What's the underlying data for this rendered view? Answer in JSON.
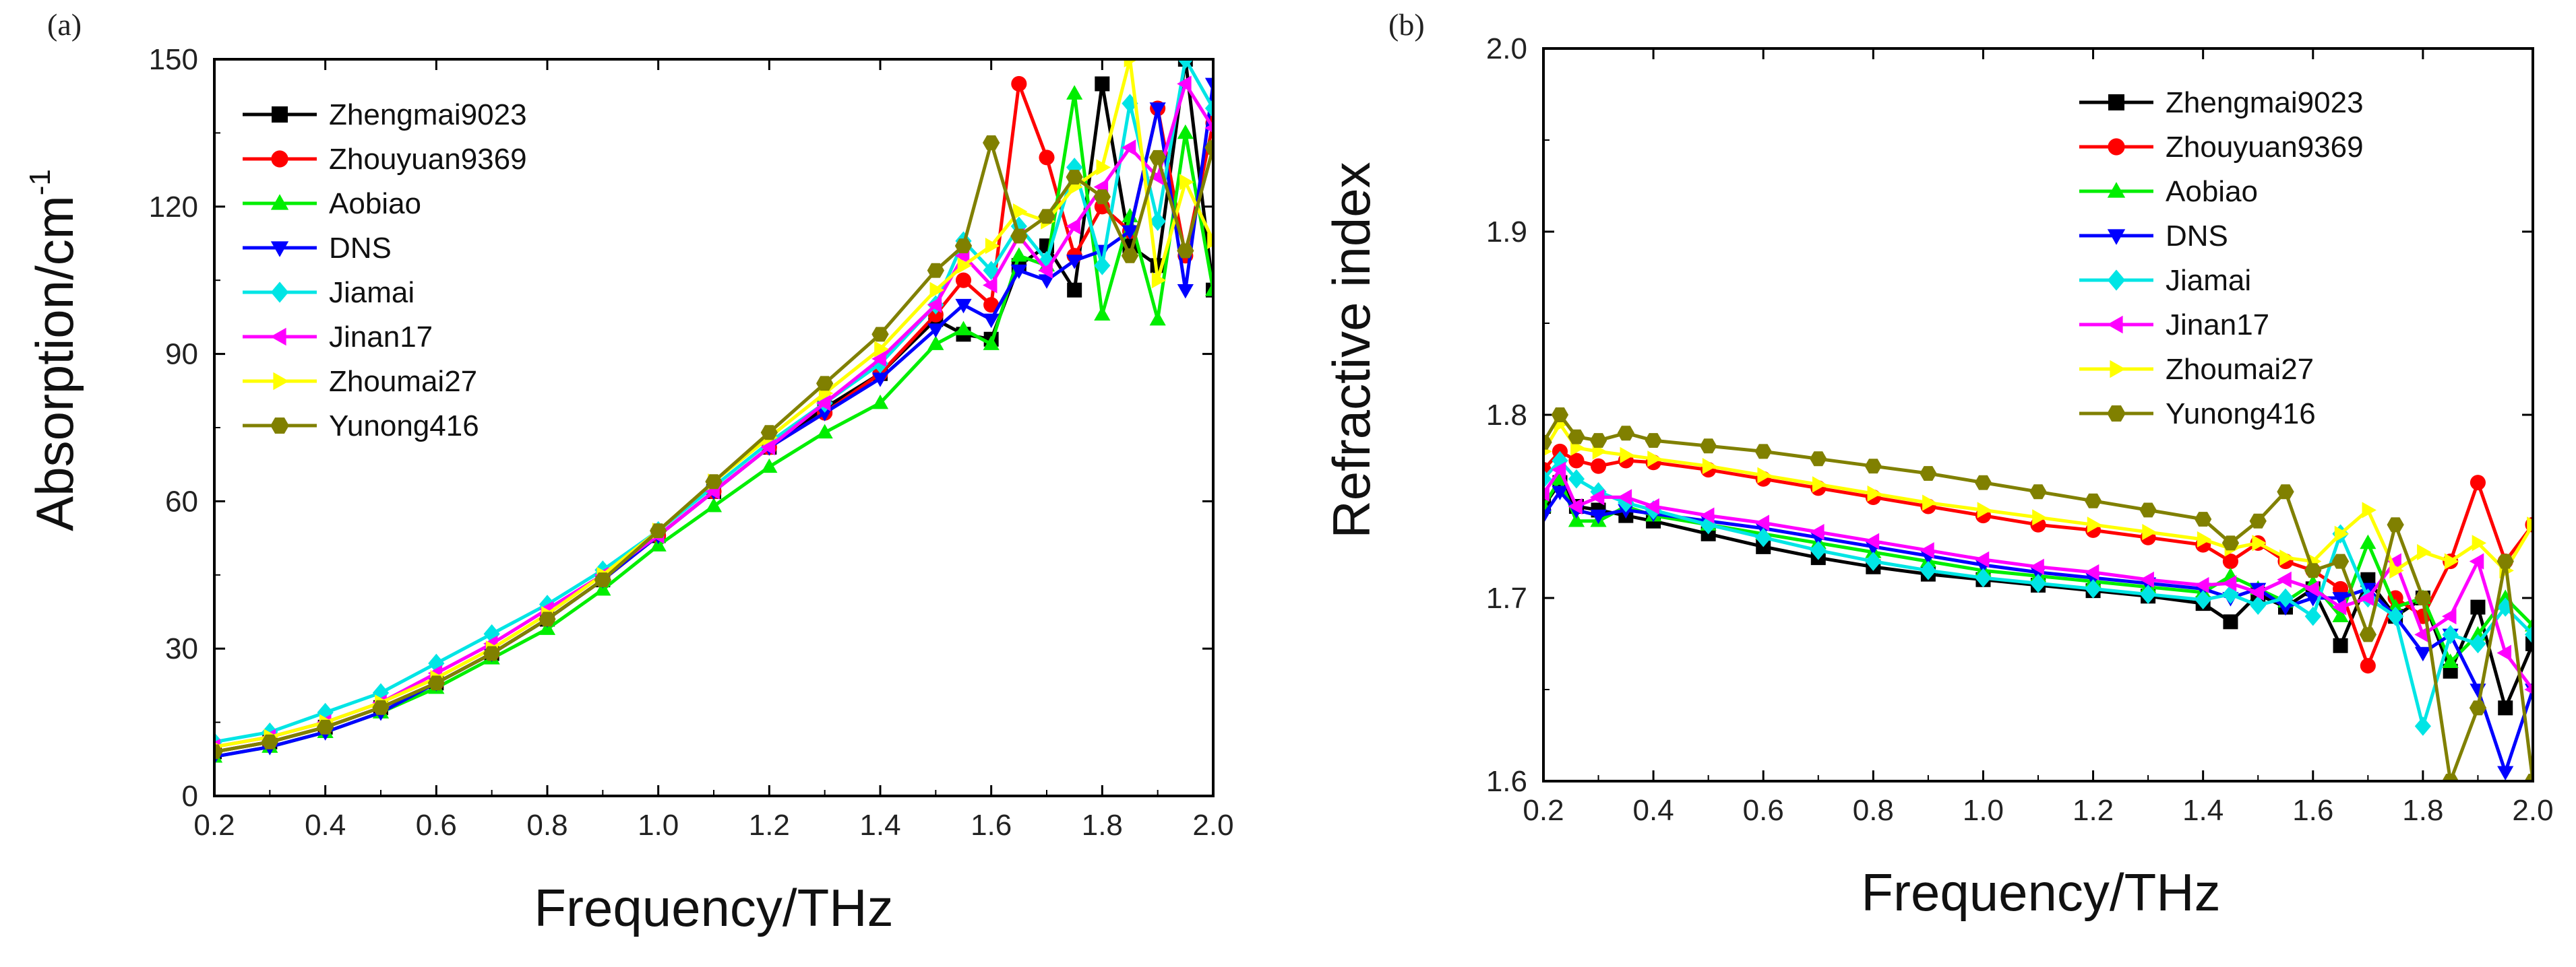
{
  "series_styles": [
    {
      "name": "Zhengmai9023",
      "color": "#000000",
      "marker": "square"
    },
    {
      "name": "Zhouyuan9369",
      "color": "#ff0000",
      "marker": "circle"
    },
    {
      "name": "Aobiao",
      "color": "#00ee00",
      "marker": "triangle-up"
    },
    {
      "name": "DNS",
      "color": "#0000ff",
      "marker": "triangle-down"
    },
    {
      "name": "Jiamai",
      "color": "#00e5e5",
      "marker": "diamond"
    },
    {
      "name": "Jinan17",
      "color": "#ff00ff",
      "marker": "triangle-left"
    },
    {
      "name": "Zhoumai27",
      "color": "#ffff00",
      "marker": "triangle-right"
    },
    {
      "name": "Yunong416",
      "color": "#808000",
      "marker": "hexagon"
    }
  ],
  "chart_data": [
    {
      "type": "line",
      "panel_label": "(a)",
      "xlabel": "Frequency/THz",
      "ylabel": "Absorption/cm",
      "ylabel_sup": "-1",
      "xlim": [
        0.2,
        2.0
      ],
      "ylim": [
        0,
        150
      ],
      "xticks": [
        "0.2",
        "0.4",
        "0.6",
        "0.8",
        "1.0",
        "1.2",
        "1.4",
        "1.6",
        "1.8",
        "2.0"
      ],
      "yticks": [
        "0",
        "30",
        "60",
        "90",
        "120",
        "150"
      ],
      "legend_loc": "top-left",
      "x": [
        0.2,
        0.3,
        0.4,
        0.5,
        0.6,
        0.7,
        0.8,
        0.9,
        1.0,
        1.1,
        1.2,
        1.3,
        1.4,
        1.5,
        1.55,
        1.6,
        1.65,
        1.7,
        1.75,
        1.8,
        1.85,
        1.9,
        1.95,
        2.0
      ],
      "series": [
        {
          "name": "Zhengmai9023",
          "values": [
            9,
            11,
            14,
            18,
            23,
            29,
            36,
            44,
            53,
            62,
            71,
            79,
            86,
            97,
            94,
            93,
            108,
            112,
            103,
            145,
            112,
            108,
            150,
            103
          ]
        },
        {
          "name": "Zhouyuan9369",
          "values": [
            9,
            11,
            14,
            18,
            23,
            29,
            36,
            44,
            53,
            62,
            71,
            78,
            86,
            98,
            105,
            100,
            145,
            130,
            110,
            120,
            115,
            140,
            110,
            137
          ]
        },
        {
          "name": "Aobiao",
          "values": [
            8,
            10,
            13,
            17,
            22,
            28,
            34,
            42,
            51,
            59,
            67,
            74,
            80,
            92,
            95,
            92,
            110,
            108,
            143,
            98,
            118,
            97,
            135,
            103
          ]
        },
        {
          "name": "DNS",
          "values": [
            8,
            10,
            13,
            17,
            23,
            29,
            36,
            44,
            53,
            62,
            71,
            78,
            85,
            95,
            100,
            97,
            107,
            105,
            109,
            111,
            115,
            140,
            103,
            145
          ]
        },
        {
          "name": "Jiamai",
          "values": [
            11,
            13,
            17,
            21,
            27,
            33,
            39,
            46,
            54,
            63,
            72,
            80,
            88,
            100,
            113,
            107,
            116,
            109,
            128,
            108,
            141,
            117,
            150,
            140
          ]
        },
        {
          "name": "Jinan17",
          "values": [
            10,
            12,
            15,
            19,
            25,
            31,
            38,
            45,
            53,
            62,
            71,
            80,
            89,
            100,
            110,
            104,
            114,
            107,
            116,
            124,
            132,
            126,
            145,
            136
          ]
        },
        {
          "name": "Zhoumai27",
          "values": [
            10,
            12,
            15,
            19,
            24,
            30,
            37,
            45,
            54,
            64,
            73,
            82,
            91,
            103,
            108,
            112,
            119,
            117,
            124,
            128,
            150,
            105,
            125,
            113
          ]
        },
        {
          "name": "Yunong416",
          "values": [
            9,
            11,
            14,
            18,
            23,
            29,
            36,
            44,
            54,
            64,
            74,
            84,
            94,
            107,
            112,
            133,
            114,
            118,
            126,
            122,
            110,
            130,
            111,
            132
          ]
        }
      ]
    },
    {
      "type": "line",
      "panel_label": "(b)",
      "xlabel": "Frequency/THz",
      "ylabel": "Refractive index",
      "xlim": [
        0.2,
        2.0
      ],
      "ylim": [
        1.6,
        2.0
      ],
      "xticks": [
        "0.2",
        "0.4",
        "0.6",
        "0.8",
        "1.0",
        "1.2",
        "1.4",
        "1.6",
        "1.8",
        "2.0"
      ],
      "yticks": [
        "1.6",
        "1.7",
        "1.8",
        "1.9",
        "2.0"
      ],
      "legend_loc": "top-right",
      "x": [
        0.2,
        0.23,
        0.26,
        0.3,
        0.35,
        0.4,
        0.5,
        0.6,
        0.7,
        0.8,
        0.9,
        1.0,
        1.1,
        1.2,
        1.3,
        1.4,
        1.45,
        1.5,
        1.55,
        1.6,
        1.65,
        1.7,
        1.75,
        1.8,
        1.85,
        1.9,
        1.95,
        2.0
      ],
      "series": [
        {
          "name": "Zhengmai9023",
          "values": [
            1.75,
            1.763,
            1.75,
            1.748,
            1.745,
            1.742,
            1.735,
            1.728,
            1.722,
            1.717,
            1.713,
            1.71,
            1.707,
            1.704,
            1.701,
            1.697,
            1.687,
            1.702,
            1.695,
            1.705,
            1.674,
            1.71,
            1.69,
            1.7,
            1.66,
            1.695,
            1.64,
            1.675
          ]
        },
        {
          "name": "Zhouyuan9369",
          "values": [
            1.77,
            1.78,
            1.775,
            1.772,
            1.775,
            1.774,
            1.77,
            1.765,
            1.76,
            1.755,
            1.75,
            1.745,
            1.74,
            1.737,
            1.733,
            1.729,
            1.72,
            1.73,
            1.72,
            1.715,
            1.705,
            1.663,
            1.7,
            1.69,
            1.72,
            1.763,
            1.72,
            1.74
          ]
        },
        {
          "name": "Aobiao",
          "values": [
            1.75,
            1.765,
            1.742,
            1.742,
            1.75,
            1.745,
            1.74,
            1.735,
            1.73,
            1.725,
            1.72,
            1.715,
            1.712,
            1.709,
            1.706,
            1.703,
            1.712,
            1.705,
            1.698,
            1.708,
            1.69,
            1.73,
            1.695,
            1.7,
            1.665,
            1.68,
            1.7,
            1.685
          ]
        },
        {
          "name": "DNS",
          "values": [
            1.745,
            1.758,
            1.748,
            1.745,
            1.748,
            1.746,
            1.742,
            1.738,
            1.733,
            1.728,
            1.723,
            1.718,
            1.714,
            1.711,
            1.708,
            1.705,
            1.7,
            1.705,
            1.695,
            1.7,
            1.7,
            1.705,
            1.69,
            1.67,
            1.68,
            1.65,
            1.605,
            1.65
          ]
        },
        {
          "name": "Jiamai",
          "values": [
            1.765,
            1.775,
            1.765,
            1.758,
            1.752,
            1.748,
            1.74,
            1.733,
            1.726,
            1.72,
            1.715,
            1.711,
            1.708,
            1.705,
            1.702,
            1.699,
            1.702,
            1.696,
            1.7,
            1.69,
            1.735,
            1.7,
            1.69,
            1.63,
            1.68,
            1.675,
            1.695,
            1.68
          ]
        },
        {
          "name": "Jinan17",
          "values": [
            1.757,
            1.77,
            1.75,
            1.755,
            1.755,
            1.75,
            1.745,
            1.741,
            1.736,
            1.731,
            1.726,
            1.721,
            1.717,
            1.714,
            1.71,
            1.707,
            1.708,
            1.703,
            1.71,
            1.705,
            1.695,
            1.7,
            1.72,
            1.68,
            1.69,
            1.72,
            1.67,
            1.65
          ]
        },
        {
          "name": "Zhoumai27",
          "values": [
            1.78,
            1.795,
            1.782,
            1.78,
            1.778,
            1.776,
            1.772,
            1.767,
            1.762,
            1.757,
            1.752,
            1.748,
            1.744,
            1.74,
            1.736,
            1.732,
            1.727,
            1.73,
            1.722,
            1.72,
            1.735,
            1.748,
            1.715,
            1.725,
            1.72,
            1.73,
            1.715,
            1.74
          ]
        },
        {
          "name": "Yunong416",
          "values": [
            1.785,
            1.8,
            1.788,
            1.786,
            1.79,
            1.786,
            1.783,
            1.78,
            1.776,
            1.772,
            1.768,
            1.763,
            1.758,
            1.753,
            1.748,
            1.743,
            1.73,
            1.742,
            1.758,
            1.715,
            1.72,
            1.68,
            1.74,
            1.7,
            1.6,
            1.64,
            1.72,
            1.6
          ]
        }
      ]
    }
  ]
}
